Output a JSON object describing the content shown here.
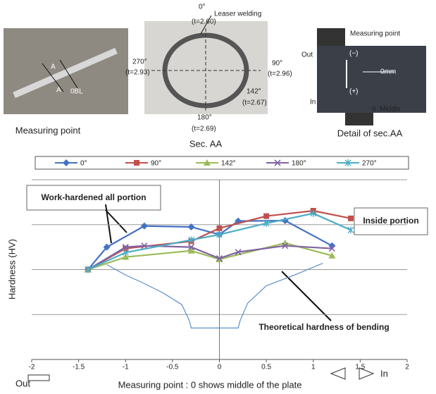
{
  "photos": [
    {
      "caption": "Measuring  point",
      "labels": [
        "A",
        "A",
        "0BL"
      ]
    },
    {
      "caption": "Sec. AA",
      "labels": [
        "Leaser welding",
        "0°",
        "(t=2.60)",
        "270°",
        "(t=2.93)",
        "90°",
        "(t=2.96)",
        "142°",
        "(t=2.67)",
        "180°",
        "(t=2.69)"
      ]
    },
    {
      "caption": "Detail of sec.AA",
      "labels": [
        "Measuring  point",
        "Out",
        "In",
        "(−)",
        "(+)",
        "0mm",
        "0 :Middle"
      ]
    }
  ],
  "chart_data": {
    "type": "line",
    "ylabel": "Hardness (HV)",
    "xlabel": "Measuring point : 0 shows middle of the plate",
    "direction_labels": [
      "Out",
      "In"
    ],
    "annotations": [
      "Work-hardened all portion",
      "Inside portion",
      "Theoretical hardness of bending"
    ],
    "xlim": [
      -2,
      2
    ],
    "xticks": [
      -2,
      -1.5,
      -1,
      -0.5,
      0,
      0.5,
      1,
      1.5,
      2
    ],
    "ylim": [
      0,
      4
    ],
    "yticks": [
      0,
      1,
      2,
      3,
      4
    ],
    "show_ytick_labels": false,
    "grid": true,
    "series": [
      {
        "name": "0°",
        "color": "#4472c4",
        "marker": "diamond",
        "x": [
          -1.4,
          -1.2,
          -0.8,
          -0.3,
          0,
          0.2,
          0.7,
          1.2
        ],
        "values": [
          2.0,
          2.5,
          2.97,
          2.95,
          2.78,
          3.08,
          3.09,
          2.53
        ]
      },
      {
        "name": "90°",
        "color": "#c0504d",
        "marker": "square",
        "x": [
          -1.4,
          -1,
          -0.3,
          0,
          0.5,
          1,
          1.4
        ],
        "values": [
          2.0,
          2.47,
          2.63,
          2.92,
          3.19,
          3.31,
          3.14
        ]
      },
      {
        "name": "142°",
        "color": "#9bbb59",
        "marker": "triangle",
        "x": [
          -1.4,
          -1,
          -0.3,
          0,
          0.7,
          1.2
        ],
        "values": [
          2.0,
          2.28,
          2.42,
          2.23,
          2.59,
          2.31
        ]
      },
      {
        "name": "180°",
        "color": "#8064a2",
        "marker": "x",
        "x": [
          -1.4,
          -1,
          -0.8,
          -0.3,
          0,
          0.2,
          0.7,
          1.2
        ],
        "values": [
          2.0,
          2.5,
          2.53,
          2.5,
          2.25,
          2.39,
          2.53,
          2.47
        ]
      },
      {
        "name": "270°",
        "color": "#4bacc6",
        "marker": "star",
        "x": [
          -1.4,
          -1,
          -0.3,
          0,
          0.5,
          1,
          1.4
        ],
        "values": [
          2.0,
          2.38,
          2.66,
          2.78,
          3.03,
          3.25,
          2.88
        ]
      }
    ],
    "curve": {
      "color": "#5b8fc7",
      "x": [
        -1.2,
        -1,
        -0.8,
        -0.6,
        -0.4,
        -0.32,
        -0.3,
        0.2,
        0.22,
        0.3,
        0.5,
        0.8,
        1.1
      ],
      "values": [
        2.11,
        1.88,
        1.69,
        1.48,
        1.22,
        0.86,
        0.7,
        0.7,
        0.86,
        1.25,
        1.64,
        1.88,
        2.14
      ]
    }
  }
}
